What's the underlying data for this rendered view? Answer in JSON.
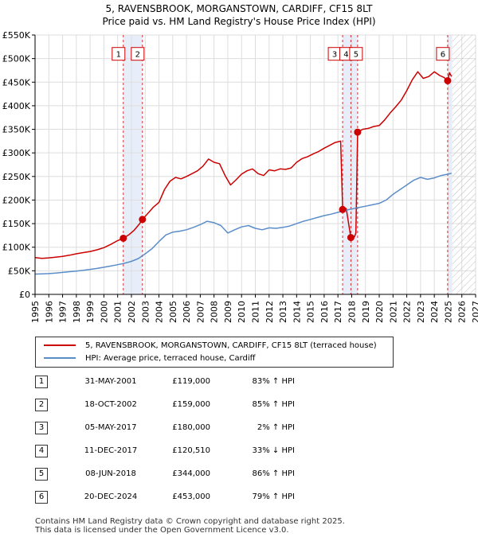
{
  "title": {
    "line1": "5, RAVENSBROOK, MORGANSTOWN, CARDIFF, CF15 8LT",
    "line2": "Price paid vs. HM Land Registry's House Price Index (HPI)"
  },
  "chart_data": {
    "type": "line",
    "title": "5, RAVENSBROOK, MORGANSTOWN, CARDIFF, CF15 8LT",
    "subtitle": "Price paid vs. HM Land Registry's House Price Index (HPI)",
    "xlim": [
      1995,
      2027
    ],
    "ylim": [
      0,
      550000
    ],
    "x_ticks": [
      "1995",
      "1996",
      "1997",
      "1998",
      "1999",
      "2000",
      "2001",
      "2002",
      "2003",
      "2004",
      "2005",
      "2006",
      "2007",
      "2008",
      "2009",
      "2010",
      "2011",
      "2012",
      "2013",
      "2014",
      "2015",
      "2016",
      "2017",
      "2018",
      "2019",
      "2020",
      "2021",
      "2022",
      "2023",
      "2024",
      "2025",
      "2026",
      "2027"
    ],
    "y_ticks": [
      {
        "value": 0,
        "label": "£0"
      },
      {
        "value": 50000,
        "label": "£50K"
      },
      {
        "value": 100000,
        "label": "£100K"
      },
      {
        "value": 150000,
        "label": "£150K"
      },
      {
        "value": 200000,
        "label": "£200K"
      },
      {
        "value": 250000,
        "label": "£250K"
      },
      {
        "value": 300000,
        "label": "£300K"
      },
      {
        "value": 350000,
        "label": "£350K"
      },
      {
        "value": 400000,
        "label": "£400K"
      },
      {
        "value": 450000,
        "label": "£450K"
      },
      {
        "value": 500000,
        "label": "£500K"
      },
      {
        "value": 550000,
        "label": "£550K"
      }
    ],
    "grid": true,
    "future_hatch_from": 2025.3,
    "series": [
      {
        "name": "5, RAVENSBROOK, MORGANSTOWN, CARDIFF, CF15 8LT (terraced house)",
        "color": "#cc0000",
        "points": [
          [
            1995.0,
            78000
          ],
          [
            1995.5,
            76500
          ],
          [
            1996.0,
            77500
          ],
          [
            1996.5,
            79000
          ],
          [
            1997.0,
            80500
          ],
          [
            1997.5,
            83000
          ],
          [
            1998.0,
            86000
          ],
          [
            1998.5,
            88500
          ],
          [
            1999.0,
            91000
          ],
          [
            1999.5,
            94500
          ],
          [
            2000.0,
            99000
          ],
          [
            2000.5,
            106000
          ],
          [
            2001.0,
            114000
          ],
          [
            2001.41,
            119000
          ],
          [
            2001.8,
            126000
          ],
          [
            2002.2,
            136000
          ],
          [
            2002.6,
            150000
          ],
          [
            2002.8,
            159000
          ],
          [
            2003.2,
            172000
          ],
          [
            2003.6,
            185000
          ],
          [
            2004.0,
            195000
          ],
          [
            2004.4,
            222000
          ],
          [
            2004.8,
            240000
          ],
          [
            2005.2,
            248000
          ],
          [
            2005.6,
            245000
          ],
          [
            2006.0,
            250000
          ],
          [
            2006.4,
            256000
          ],
          [
            2006.8,
            262000
          ],
          [
            2007.2,
            272000
          ],
          [
            2007.6,
            287000
          ],
          [
            2008.0,
            280000
          ],
          [
            2008.4,
            277000
          ],
          [
            2008.8,
            252000
          ],
          [
            2009.2,
            232000
          ],
          [
            2009.6,
            243000
          ],
          [
            2010.0,
            255000
          ],
          [
            2010.4,
            262000
          ],
          [
            2010.8,
            266000
          ],
          [
            2011.2,
            256000
          ],
          [
            2011.6,
            252000
          ],
          [
            2012.0,
            264000
          ],
          [
            2012.4,
            262000
          ],
          [
            2012.8,
            266000
          ],
          [
            2013.2,
            265000
          ],
          [
            2013.6,
            268000
          ],
          [
            2014.0,
            280000
          ],
          [
            2014.4,
            288000
          ],
          [
            2014.8,
            292000
          ],
          [
            2015.2,
            298000
          ],
          [
            2015.6,
            303000
          ],
          [
            2016.0,
            310000
          ],
          [
            2016.4,
            316000
          ],
          [
            2016.8,
            322000
          ],
          [
            2017.2,
            325000
          ],
          [
            2017.34,
            180000
          ],
          [
            2017.6,
            182000
          ],
          [
            2017.94,
            120510
          ],
          [
            2018.2,
            122000
          ],
          [
            2018.3,
            130000
          ],
          [
            2018.43,
            344000
          ],
          [
            2018.8,
            350000
          ],
          [
            2019.2,
            352000
          ],
          [
            2019.6,
            356000
          ],
          [
            2020.0,
            358000
          ],
          [
            2020.4,
            370000
          ],
          [
            2020.8,
            385000
          ],
          [
            2021.2,
            398000
          ],
          [
            2021.6,
            412000
          ],
          [
            2022.0,
            432000
          ],
          [
            2022.4,
            455000
          ],
          [
            2022.8,
            472000
          ],
          [
            2023.2,
            458000
          ],
          [
            2023.6,
            462000
          ],
          [
            2024.0,
            472000
          ],
          [
            2024.4,
            464000
          ],
          [
            2024.7,
            460000
          ],
          [
            2024.97,
            453000
          ],
          [
            2025.1,
            470000
          ],
          [
            2025.25,
            462000
          ]
        ]
      },
      {
        "name": "HPI: Average price, terraced house, Cardiff",
        "color": "#5b8dc9",
        "points": [
          [
            1995.0,
            43000
          ],
          [
            1995.5,
            43500
          ],
          [
            1996.0,
            44000
          ],
          [
            1996.5,
            45000
          ],
          [
            1997.0,
            46500
          ],
          [
            1997.5,
            48000
          ],
          [
            1998.0,
            49500
          ],
          [
            1998.5,
            51000
          ],
          [
            1999.0,
            53000
          ],
          [
            1999.5,
            55000
          ],
          [
            2000.0,
            57500
          ],
          [
            2000.5,
            60000
          ],
          [
            2001.0,
            63000
          ],
          [
            2001.5,
            66000
          ],
          [
            2002.0,
            70000
          ],
          [
            2002.5,
            76000
          ],
          [
            2003.0,
            86000
          ],
          [
            2003.5,
            97000
          ],
          [
            2004.0,
            112000
          ],
          [
            2004.5,
            126000
          ],
          [
            2005.0,
            132000
          ],
          [
            2005.5,
            134000
          ],
          [
            2006.0,
            137000
          ],
          [
            2006.5,
            142000
          ],
          [
            2007.0,
            148000
          ],
          [
            2007.5,
            155000
          ],
          [
            2008.0,
            152000
          ],
          [
            2008.5,
            146000
          ],
          [
            2009.0,
            130000
          ],
          [
            2009.5,
            137000
          ],
          [
            2010.0,
            143000
          ],
          [
            2010.5,
            146000
          ],
          [
            2011.0,
            140000
          ],
          [
            2011.5,
            137000
          ],
          [
            2012.0,
            141000
          ],
          [
            2012.5,
            140000
          ],
          [
            2013.0,
            142000
          ],
          [
            2013.5,
            145000
          ],
          [
            2014.0,
            150000
          ],
          [
            2014.5,
            155000
          ],
          [
            2015.0,
            159000
          ],
          [
            2015.5,
            163000
          ],
          [
            2016.0,
            167000
          ],
          [
            2016.5,
            170000
          ],
          [
            2017.0,
            174000
          ],
          [
            2017.5,
            178000
          ],
          [
            2018.0,
            181000
          ],
          [
            2018.5,
            184000
          ],
          [
            2019.0,
            187000
          ],
          [
            2019.5,
            190000
          ],
          [
            2020.0,
            193000
          ],
          [
            2020.5,
            200000
          ],
          [
            2021.0,
            212000
          ],
          [
            2021.5,
            222000
          ],
          [
            2022.0,
            232000
          ],
          [
            2022.5,
            242000
          ],
          [
            2023.0,
            248000
          ],
          [
            2023.5,
            244000
          ],
          [
            2024.0,
            247000
          ],
          [
            2024.5,
            252000
          ],
          [
            2025.0,
            255000
          ],
          [
            2025.25,
            257000
          ]
        ]
      }
    ],
    "sales": [
      {
        "label": "1",
        "x": 2001.41,
        "price": 119000
      },
      {
        "label": "2",
        "x": 2002.8,
        "price": 159000
      },
      {
        "label": "3",
        "x": 2017.34,
        "price": 180000
      },
      {
        "label": "4",
        "x": 2017.94,
        "price": 120510
      },
      {
        "label": "5",
        "x": 2018.43,
        "price": 344000
      },
      {
        "label": "6",
        "x": 2024.97,
        "price": 453000
      }
    ]
  },
  "legend": {
    "property_label": "5, RAVENSBROOK, MORGANSTOWN, CARDIFF, CF15 8LT (terraced house)",
    "property_color": "#cc0000",
    "hpi_label": "HPI: Average price, terraced house, Cardiff",
    "hpi_color": "#5b8dc9"
  },
  "transactions": [
    {
      "num": "1",
      "date": "31-MAY-2001",
      "price": "£119,000",
      "hpi": "83% ↑ HPI"
    },
    {
      "num": "2",
      "date": "18-OCT-2002",
      "price": "£159,000",
      "hpi": "85% ↑ HPI"
    },
    {
      "num": "3",
      "date": "05-MAY-2017",
      "price": "£180,000",
      "hpi": "2% ↑ HPI"
    },
    {
      "num": "4",
      "date": "11-DEC-2017",
      "price": "£120,510",
      "hpi": "33% ↓ HPI"
    },
    {
      "num": "5",
      "date": "08-JUN-2018",
      "price": "£344,000",
      "hpi": "86% ↑ HPI"
    },
    {
      "num": "6",
      "date": "20-DEC-2024",
      "price": "£453,000",
      "hpi": "79% ↑ HPI"
    }
  ],
  "footer": {
    "line1": "Contains HM Land Registry data © Crown copyright and database right 2025.",
    "line2": "This data is licensed under the Open Government Licence v3.0."
  }
}
